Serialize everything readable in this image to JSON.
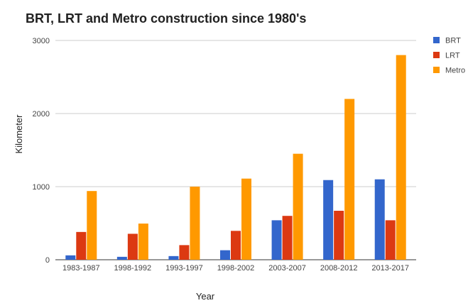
{
  "chart_data": {
    "type": "bar",
    "title": "BRT, LRT and Metro construction since 1980's",
    "xlabel": "Year",
    "ylabel": "Kilometer",
    "categories": [
      "1983-1987",
      "1998-1992",
      "1993-1997",
      "1998-2002",
      "2003-2007",
      "2008-2012",
      "2013-2017"
    ],
    "series": [
      {
        "name": "BRT",
        "color": "#3366cc",
        "values": [
          60,
          40,
          50,
          130,
          540,
          1090,
          1100
        ]
      },
      {
        "name": "LRT",
        "color": "#dc3912",
        "values": [
          380,
          355,
          200,
          395,
          600,
          670,
          540
        ]
      },
      {
        "name": "Metro",
        "color": "#ff9900",
        "values": [
          940,
          495,
          1000,
          1110,
          1450,
          2200,
          2800
        ]
      }
    ],
    "ylim": [
      0,
      3000
    ],
    "yticks": [
      0,
      1000,
      2000,
      3000
    ],
    "grid": true,
    "legend": "right"
  }
}
